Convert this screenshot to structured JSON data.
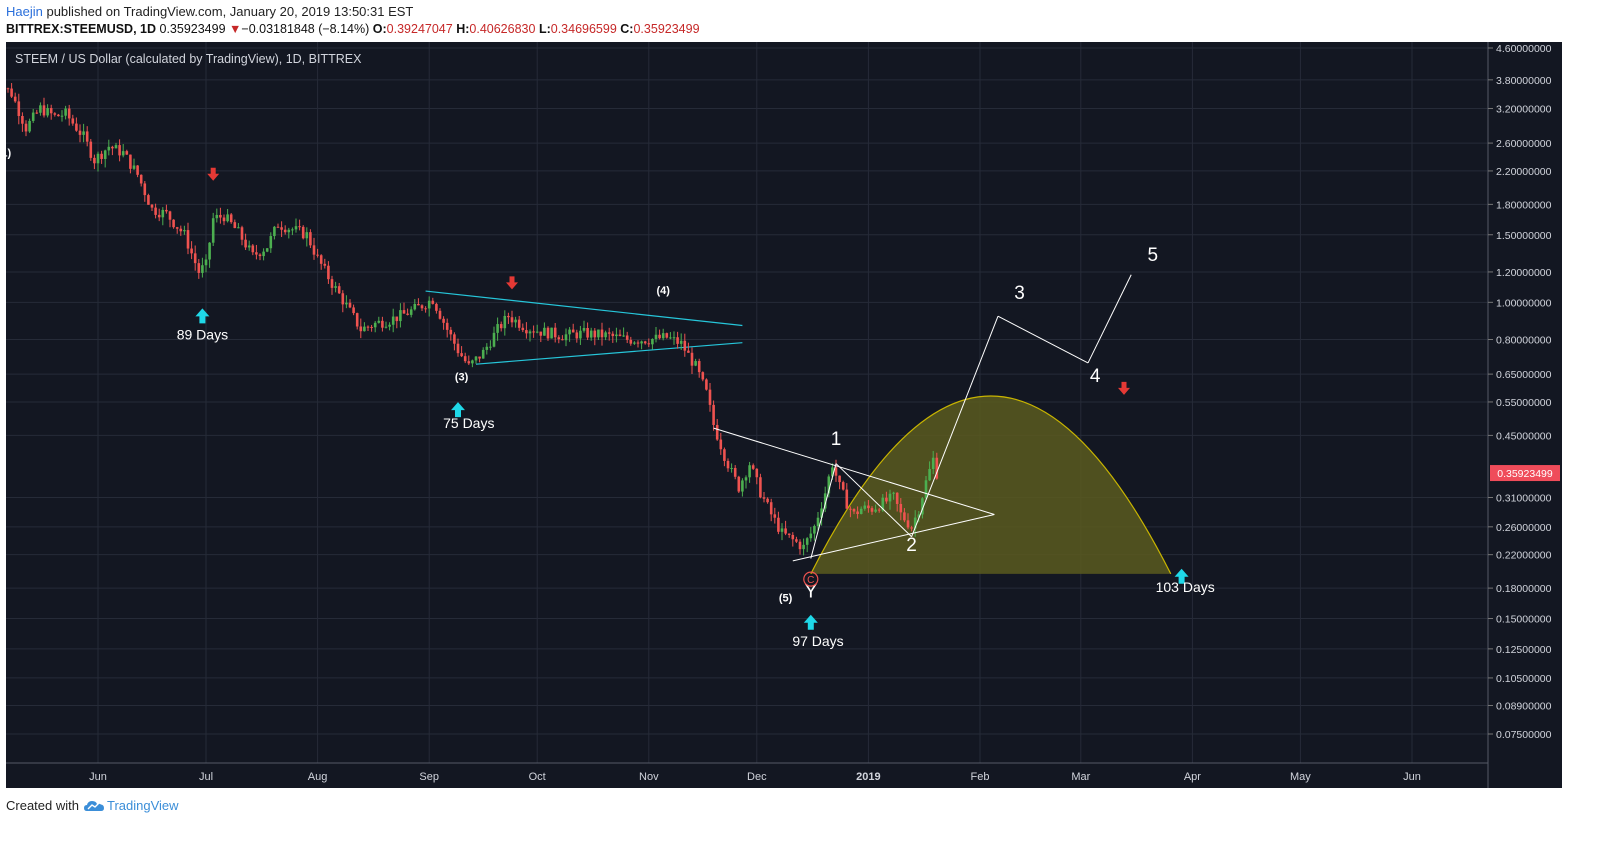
{
  "header": {
    "author": "Haejin",
    "published": " published on TradingView.com, January 20, 2019 13:50:31 EST"
  },
  "symbol_line": {
    "symbol": "BITTREX:STEEMUSD, 1D",
    "last": "0.35923499",
    "change": "−0.03181848 (−8.14%)",
    "o_label": "O:",
    "o": "0.39247047",
    "h_label": "H:",
    "h": "0.40626830",
    "l_label": "L:",
    "l": "0.34696599",
    "c_label": "C:",
    "c": "0.35923499"
  },
  "footer": {
    "created_with": "Created with",
    "brand": "TradingView"
  },
  "colors": {
    "background": "#131722",
    "candle_up": "#4caf50",
    "candle_down": "#ef5350",
    "price_label": "#ef4c5a",
    "channel": "#26c6da",
    "arrow_up": "#1fd8e8",
    "arrow_down": "#e53935",
    "arc_fill": "#5a5a1e",
    "arc_stroke": "#c8b400"
  },
  "chart_data": {
    "type": "candlestick",
    "title": "STEEM / US Dollar (calculated by TradingView), 1D, BITTREX",
    "y_scale": "log",
    "ylim": [
      0.065,
      4.8
    ],
    "y_ticks": [
      "4.60000000",
      "3.80000000",
      "3.20000000",
      "2.60000000",
      "2.20000000",
      "1.80000000",
      "1.50000000",
      "1.20000000",
      "1.00000000",
      "0.80000000",
      "0.65000000",
      "0.55000000",
      "0.45000000",
      "0.31000000",
      "0.26000000",
      "0.22000000",
      "0.18000000",
      "0.15000000",
      "0.12500000",
      "0.10500000",
      "0.08900000",
      "0.07500000"
    ],
    "x_ticks": [
      "Jun",
      "Jul",
      "Aug",
      "Sep",
      "Oct",
      "Nov",
      "Dec",
      "2019",
      "Feb",
      "Mar",
      "Apr",
      "May",
      "Jun"
    ],
    "last_price_label": "0.35923499",
    "price_path": [
      [
        "2018-05-03",
        3.85
      ],
      [
        "2018-05-08",
        3.5
      ],
      [
        "2018-05-12",
        2.85
      ],
      [
        "2018-05-16",
        3.2
      ],
      [
        "2018-05-20",
        3.05
      ],
      [
        "2018-05-23",
        3.1
      ],
      [
        "2018-05-28",
        2.7
      ],
      [
        "2018-05-31",
        2.35
      ],
      [
        "2018-06-04",
        2.55
      ],
      [
        "2018-06-08",
        2.45
      ],
      [
        "2018-06-12",
        2.15
      ],
      [
        "2018-06-16",
        1.75
      ],
      [
        "2018-06-20",
        1.7
      ],
      [
        "2018-06-25",
        1.5
      ],
      [
        "2018-06-29",
        1.2
      ],
      [
        "2018-07-01",
        1.25
      ],
      [
        "2018-07-03",
        1.65
      ],
      [
        "2018-07-06",
        1.68
      ],
      [
        "2018-07-10",
        1.52
      ],
      [
        "2018-07-14",
        1.32
      ],
      [
        "2018-07-18",
        1.4
      ],
      [
        "2018-07-21",
        1.6
      ],
      [
        "2018-07-25",
        1.55
      ],
      [
        "2018-07-29",
        1.5
      ],
      [
        "2018-08-01",
        1.3
      ],
      [
        "2018-08-05",
        1.12
      ],
      [
        "2018-08-09",
        0.98
      ],
      [
        "2018-08-13",
        0.85
      ],
      [
        "2018-08-17",
        0.88
      ],
      [
        "2018-08-21",
        0.9
      ],
      [
        "2018-08-25",
        0.93
      ],
      [
        "2018-08-29",
        0.97
      ],
      [
        "2018-09-02",
        1.02
      ],
      [
        "2018-09-06",
        0.85
      ],
      [
        "2018-09-09",
        0.75
      ],
      [
        "2018-09-12",
        0.68
      ],
      [
        "2018-09-16",
        0.74
      ],
      [
        "2018-09-20",
        0.85
      ],
      [
        "2018-09-23",
        0.92
      ],
      [
        "2018-09-28",
        0.86
      ],
      [
        "2018-10-02",
        0.84
      ],
      [
        "2018-10-08",
        0.82
      ],
      [
        "2018-10-14",
        0.83
      ],
      [
        "2018-10-20",
        0.82
      ],
      [
        "2018-10-26",
        0.8
      ],
      [
        "2018-11-01",
        0.8
      ],
      [
        "2018-11-06",
        0.81
      ],
      [
        "2018-11-10",
        0.78
      ],
      [
        "2018-11-14",
        0.68
      ],
      [
        "2018-11-17",
        0.58
      ],
      [
        "2018-11-19",
        0.48
      ],
      [
        "2018-11-22",
        0.4
      ],
      [
        "2018-11-24",
        0.36
      ],
      [
        "2018-11-26",
        0.33
      ],
      [
        "2018-11-29",
        0.38
      ],
      [
        "2018-12-02",
        0.32
      ],
      [
        "2018-12-05",
        0.28
      ],
      [
        "2018-12-08",
        0.25
      ],
      [
        "2018-12-11",
        0.24
      ],
      [
        "2018-12-14",
        0.23
      ],
      [
        "2018-12-17",
        0.26
      ],
      [
        "2018-12-20",
        0.32
      ],
      [
        "2018-12-22",
        0.38
      ],
      [
        "2018-12-24",
        0.33
      ],
      [
        "2018-12-26",
        0.3
      ],
      [
        "2018-12-28",
        0.28
      ],
      [
        "2018-12-30",
        0.29
      ],
      [
        "2019-01-02",
        0.29
      ],
      [
        "2019-01-05",
        0.3
      ],
      [
        "2019-01-08",
        0.31
      ],
      [
        "2019-01-10",
        0.28
      ],
      [
        "2019-01-13",
        0.26
      ],
      [
        "2019-01-15",
        0.29
      ],
      [
        "2019-01-17",
        0.34
      ],
      [
        "2019-01-19",
        0.39
      ],
      [
        "2019-01-20",
        0.359
      ]
    ],
    "annotations": {
      "wave_labels": [
        {
          "text": "(1)",
          "x": "2018-05-06",
          "y": 2.4
        },
        {
          "text": "(3)",
          "x": "2018-09-10",
          "y": 0.625
        },
        {
          "text": "(4)",
          "x": "2018-11-05",
          "y": 1.05
        },
        {
          "text": "(5)",
          "x": "2018-12-09",
          "y": 0.166
        },
        {
          "text": "1",
          "x": "2018-12-23",
          "y": 0.425
        },
        {
          "text": "2",
          "x": "2019-01-13",
          "y": 0.225
        },
        {
          "text": "3",
          "x": "2019-02-12",
          "y": 1.02
        },
        {
          "text": "4",
          "x": "2019-03-05",
          "y": 0.62
        },
        {
          "text": "5",
          "x": "2019-03-21",
          "y": 1.28
        },
        {
          "text": "Y",
          "x": "2018-12-16",
          "y": 0.17
        }
      ],
      "day_labels": [
        {
          "text": "89 Days",
          "x": "2018-06-30",
          "y": 0.8
        },
        {
          "text": "75 Days",
          "x": "2018-09-12",
          "y": 0.47
        },
        {
          "text": "97 Days",
          "x": "2018-12-18",
          "y": 0.127
        },
        {
          "text": "103 Days",
          "x": "2019-03-30",
          "y": 0.176
        }
      ],
      "c_circle_label": "C",
      "up_arrows": [
        {
          "x": "2018-06-30",
          "y": 0.93
        },
        {
          "x": "2018-09-09",
          "y": 0.53
        },
        {
          "x": "2018-12-16",
          "y": 0.148
        },
        {
          "x": "2019-03-29",
          "y": 0.195
        }
      ],
      "down_arrows": [
        {
          "x": "2018-07-03",
          "y": 2.15
        },
        {
          "x": "2018-09-24",
          "y": 1.12
        },
        {
          "x": "2019-03-13",
          "y": 0.595
        }
      ],
      "channel_lines": [
        {
          "from": [
            "2018-08-31",
            1.07
          ],
          "to": [
            "2018-11-27",
            0.87
          ]
        },
        {
          "from": [
            "2018-09-14",
            0.69
          ],
          "to": [
            "2018-11-27",
            0.785
          ]
        }
      ],
      "white_lines": [
        {
          "from": [
            "2018-11-19",
            0.47
          ],
          "to": [
            "2019-02-05",
            0.28
          ]
        },
        {
          "from": [
            "2018-12-11",
            0.212
          ],
          "to": [
            "2019-02-05",
            0.28
          ]
        },
        {
          "from": [
            "2018-12-16",
            0.215
          ],
          "to": [
            "2018-12-23",
            0.38
          ],
          "note": "wave"
        },
        {
          "from": [
            "2018-12-23",
            0.38
          ],
          "to": [
            "2019-01-13",
            0.245
          ]
        },
        {
          "from": [
            "2019-01-13",
            0.245
          ],
          "to": [
            "2019-02-06",
            0.92
          ]
        },
        {
          "from": [
            "2019-02-06",
            0.92
          ],
          "to": [
            "2019-03-03",
            0.695
          ]
        },
        {
          "from": [
            "2019-03-03",
            0.695
          ],
          "to": [
            "2019-03-15",
            1.18
          ]
        }
      ],
      "arc": {
        "start": [
          "2018-12-16",
          0.196
        ],
        "end": [
          "2019-03-26",
          0.196
        ],
        "peak": 0.57
      }
    }
  }
}
